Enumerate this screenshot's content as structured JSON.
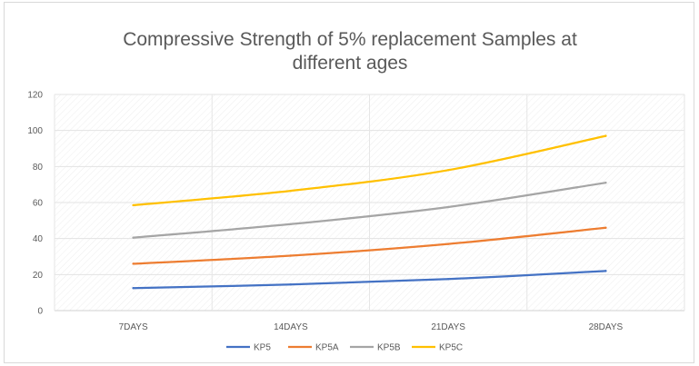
{
  "chart_data": {
    "type": "line",
    "title_line1": "Compressive Strength of 5% replacement Samples at",
    "title_line2": "different ages",
    "categories": [
      "7DAYS",
      "14DAYS",
      "21DAYS",
      "28DAYS"
    ],
    "ylim": [
      0,
      120
    ],
    "yticks": [
      0,
      20,
      40,
      60,
      80,
      100,
      120
    ],
    "grid": true,
    "legend_position": "bottom",
    "series": [
      {
        "name": "KP5",
        "color": "#4472c4",
        "values": [
          12.5,
          14.5,
          17.5,
          22
        ]
      },
      {
        "name": "KP5A",
        "color": "#ed7d31",
        "values": [
          26,
          30.5,
          37,
          46
        ]
      },
      {
        "name": "KP5B",
        "color": "#a5a5a5",
        "values": [
          40.5,
          48,
          57.5,
          71
        ]
      },
      {
        "name": "KP5C",
        "color": "#ffc000",
        "values": [
          58.5,
          66.5,
          78,
          97
        ]
      }
    ]
  }
}
